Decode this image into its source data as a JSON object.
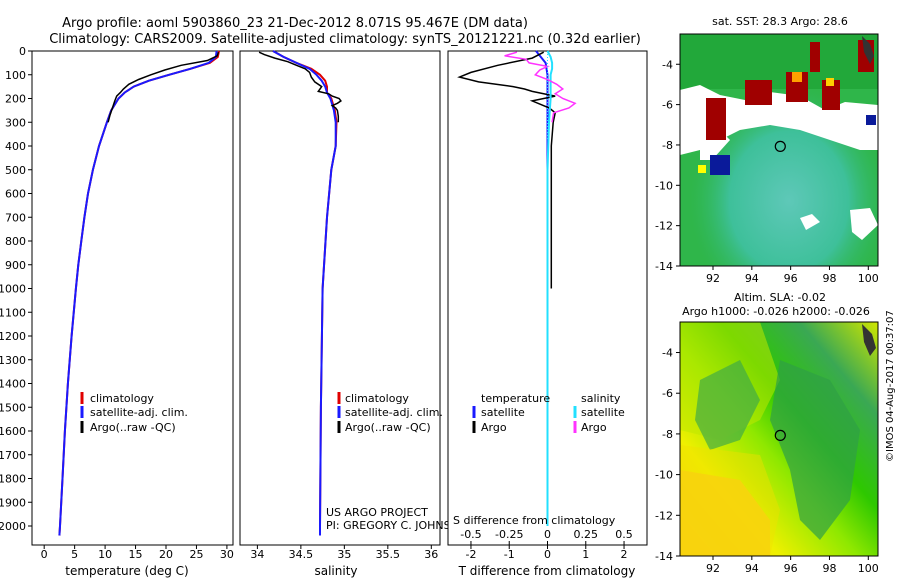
{
  "header": {
    "line1": "Argo profile: aoml 5903860_23 21-Dec-2012 8.071S 95.467E (DM data)",
    "line2": "Climatology: CARS2009. Satellite-adjusted climatology: synTS_20121221.nc (0.32d earlier)"
  },
  "colors": {
    "climatology": "#e00000",
    "satellite": "#1a1aff",
    "argo": "#000000",
    "sal_satellite": "#22e0ff",
    "sal_argo": "#ff33ff"
  },
  "chart_data": [
    {
      "type": "line",
      "title": "",
      "xlabel": "temperature (deg C)",
      "ylabel": "",
      "xlim": [
        -2,
        31
      ],
      "ylim": [
        2080,
        0
      ],
      "xticks": [
        0,
        5,
        10,
        15,
        20,
        25,
        30
      ],
      "yticks": [
        0,
        100,
        200,
        300,
        400,
        500,
        600,
        700,
        800,
        900,
        1000,
        1100,
        1200,
        1300,
        1400,
        1500,
        1600,
        1700,
        1800,
        1900,
        2000
      ],
      "legend": [
        "climatology",
        "satellite-adj. clim.",
        "Argo(..raw -QC)"
      ],
      "series": [
        {
          "name": "climatology",
          "depth": [
            0,
            25,
            50,
            75,
            100,
            125,
            150,
            175,
            200,
            250,
            300,
            400,
            500,
            600,
            700,
            800,
            900,
            1000,
            1200,
            1400,
            1600,
            1800,
            2000,
            2040
          ],
          "values": [
            28.7,
            28.5,
            27.2,
            24.0,
            20.5,
            17.2,
            14.7,
            13.2,
            12.2,
            11.0,
            10.3,
            9.0,
            8.0,
            7.2,
            6.6,
            6.1,
            5.6,
            5.2,
            4.5,
            3.9,
            3.4,
            3.0,
            2.6,
            2.5
          ]
        },
        {
          "name": "satellite-adj. clim.",
          "depth": [
            0,
            25,
            50,
            75,
            100,
            125,
            150,
            175,
            200,
            250,
            300,
            400,
            500,
            600,
            700,
            800,
            900,
            1000,
            1200,
            1400,
            1600,
            1800,
            2000,
            2040
          ],
          "values": [
            28.3,
            28.2,
            27.0,
            24.0,
            20.5,
            17.2,
            14.7,
            13.2,
            12.2,
            11.0,
            10.3,
            9.0,
            8.0,
            7.2,
            6.6,
            6.1,
            5.6,
            5.2,
            4.5,
            3.9,
            3.4,
            3.0,
            2.6,
            2.5
          ]
        },
        {
          "name": "Argo(..raw -QC)",
          "depth": [
            5,
            20,
            40,
            60,
            80,
            100,
            120,
            140,
            160,
            175,
            190,
            210,
            240,
            270,
            300
          ],
          "values": [
            28.6,
            28.4,
            26.8,
            22.5,
            19.8,
            17.5,
            15.5,
            13.9,
            13.0,
            12.5,
            11.9,
            11.6,
            11.2,
            10.8,
            10.5
          ]
        }
      ]
    },
    {
      "type": "line",
      "title": "",
      "xlabel": "salinity",
      "ylabel": "",
      "xlim": [
        33.8,
        36.1
      ],
      "ylim": [
        2080,
        0
      ],
      "xticks": [
        34,
        34.5,
        35,
        35.5,
        36
      ],
      "xticklabels": [
        "34",
        "34.5",
        "35",
        "35.5",
        "36"
      ],
      "legend": [
        "climatology",
        "satellite-adj. clim.",
        "Argo(..raw -QC)"
      ],
      "annotation": [
        "US ARGO PROJECT",
        "PI: GREGORY C. JOHNSON"
      ],
      "series": [
        {
          "name": "climatology",
          "depth": [
            0,
            25,
            50,
            75,
            100,
            125,
            150,
            175,
            200,
            250,
            300,
            400,
            500,
            700,
            1000,
            1500,
            2000,
            2040
          ],
          "values": [
            34.18,
            34.3,
            34.45,
            34.62,
            34.72,
            34.78,
            34.8,
            34.8,
            34.85,
            34.89,
            34.91,
            34.9,
            34.85,
            34.8,
            34.75,
            34.73,
            34.72,
            34.72
          ]
        },
        {
          "name": "satellite-adj. clim.",
          "depth": [
            0,
            25,
            50,
            75,
            100,
            125,
            150,
            175,
            200,
            250,
            300,
            400,
            500,
            700,
            1000,
            1500,
            2000,
            2040
          ],
          "values": [
            34.18,
            34.3,
            34.45,
            34.6,
            34.68,
            34.74,
            34.78,
            34.8,
            34.84,
            34.88,
            34.9,
            34.9,
            34.85,
            34.8,
            34.75,
            34.73,
            34.72,
            34.72
          ]
        },
        {
          "name": "Argo(..raw -QC)",
          "depth": [
            5,
            15,
            30,
            45,
            60,
            75,
            90,
            110,
            130,
            150,
            170,
            180,
            190,
            200,
            210,
            220,
            230,
            240,
            250,
            275,
            300
          ],
          "values": [
            34.02,
            34.08,
            34.2,
            34.35,
            34.45,
            34.55,
            34.6,
            34.62,
            34.66,
            34.74,
            34.7,
            34.82,
            34.86,
            34.94,
            34.96,
            34.92,
            34.86,
            34.9,
            34.92,
            34.93,
            34.93
          ]
        }
      ]
    },
    {
      "type": "line",
      "title": "",
      "xlabel_top": "S difference from climatology",
      "xlabel": "T difference from climatology",
      "xlim": [
        -2.6,
        2.6
      ],
      "ylim": [
        2080,
        0
      ],
      "xticks": [
        -2,
        -1,
        0,
        1,
        2
      ],
      "xticks_salinity": [
        -0.5,
        -0.25,
        0,
        0.25,
        0.5
      ],
      "xticklabels_salinity": [
        "-0.5",
        "-0.25",
        "0",
        "0.25",
        "0.5"
      ],
      "legend_temperature": {
        "title": "temperature",
        "items": [
          "satellite",
          "Argo"
        ]
      },
      "legend_salinity": {
        "title": "salinity",
        "items": [
          "satellite",
          "Argo"
        ]
      },
      "series": [
        {
          "name": "temperature satellite",
          "depth": [
            0,
            50,
            100,
            200,
            400,
            700,
            1000,
            2000
          ],
          "values": [
            -0.3,
            -0.05,
            0.0,
            0.0,
            0.0,
            0.0,
            0.0,
            0.0
          ]
        },
        {
          "name": "temperature Argo",
          "depth": [
            5,
            30,
            60,
            90,
            110,
            130,
            150,
            160,
            170,
            190,
            210,
            240,
            260,
            300,
            400,
            600,
            800,
            1000
          ],
          "values": [
            -0.1,
            -0.4,
            -1.3,
            -2.0,
            -2.3,
            -1.8,
            -0.9,
            -0.6,
            -0.4,
            0.2,
            -0.4,
            0.05,
            0.2,
            0.15,
            0.1,
            0.1,
            0.1,
            0.1
          ]
        },
        {
          "name": "salinity satellite",
          "depth": [
            0,
            25,
            50,
            75,
            100,
            150,
            200,
            300,
            500,
            1000,
            2000
          ],
          "values": [
            0.0,
            0.02,
            0.03,
            0.03,
            0.02,
            0.02,
            0.02,
            0.01,
            0.0,
            0.0,
            0.0
          ]
        },
        {
          "name": "salinity Argo",
          "depth": [
            5,
            20,
            35,
            50,
            65,
            80,
            100,
            120,
            140,
            160,
            180,
            200,
            220,
            240,
            260,
            300
          ],
          "values": [
            -0.2,
            -0.28,
            -0.14,
            -0.12,
            0.0,
            -0.05,
            -0.08,
            0.0,
            0.06,
            0.1,
            0.05,
            0.1,
            0.18,
            0.14,
            0.04,
            0.03
          ]
        }
      ]
    },
    {
      "type": "heatmap",
      "title": "sat. SST: 28.3 Argo: 28.6",
      "xlim": [
        90.3,
        100.5
      ],
      "ylim": [
        -14,
        -2.5
      ],
      "xticks": [
        92,
        94,
        96,
        98,
        100
      ],
      "yticks": [
        -4,
        -6,
        -8,
        -10,
        -12,
        -14
      ],
      "marker": {
        "lon": 95.467,
        "lat": -8.071
      }
    },
    {
      "type": "heatmap",
      "title": "Altim. SLA: -0.02",
      "subtitle": "Argo h1000: -0.026 h2000: -0.026",
      "xlim": [
        90.3,
        100.5
      ],
      "ylim": [
        -14,
        -2.5
      ],
      "xticks": [
        92,
        94,
        96,
        98,
        100
      ],
      "yticks": [
        -4,
        -6,
        -8,
        -10,
        -12,
        -14
      ],
      "marker": {
        "lon": 95.467,
        "lat": -8.071
      }
    }
  ],
  "watermark": "©IMOS 04-Aug-2017 00:37:07"
}
